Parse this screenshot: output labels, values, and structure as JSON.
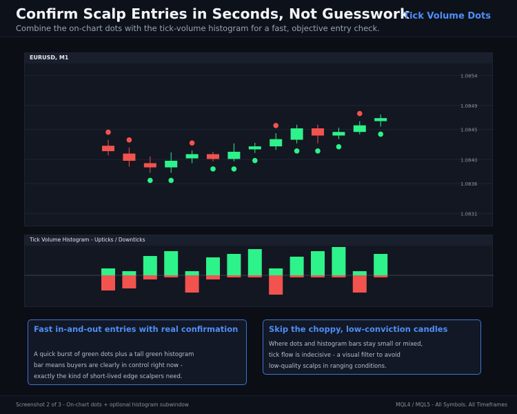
{
  "header": {
    "title": "Confirm Scalp Entries in Seconds, Not Guesswork",
    "subtitle": "Combine the on-chart dots with the tick-volume histogram for a fast, objective entry check.",
    "brand": "Tick Volume Dots"
  },
  "main_panel": {
    "label": "EURUSD, M1"
  },
  "hist_panel": {
    "label": "Tick Volume Histogram - Upticks / Downticks"
  },
  "colors": {
    "bull": "#2ef28a",
    "bear": "#f2534e",
    "accent": "#4f8ef7",
    "panel": "#131722"
  },
  "chart_data": [
    {
      "type": "candlestick",
      "symbol": "EURUSD",
      "timeframe": "M1",
      "ylim": [
        1.0829,
        1.0856
      ],
      "yticks": [
        "1.0854",
        "1.0849",
        "1.0845",
        "1.0840",
        "1.0836",
        "1.0831"
      ],
      "ytick_values": [
        1.0854,
        1.0849,
        1.0845,
        1.084,
        1.0836,
        1.0831
      ],
      "candles": [
        {
          "o": 1.08423,
          "h": 1.08433,
          "l": 1.08407,
          "c": 1.08414,
          "dot": "up"
        },
        {
          "o": 1.0841,
          "h": 1.0842,
          "l": 1.08388,
          "c": 1.08398,
          "dot": "up"
        },
        {
          "o": 1.08394,
          "h": 1.08405,
          "l": 1.08378,
          "c": 1.08387,
          "dot": "down"
        },
        {
          "o": 1.08387,
          "h": 1.08412,
          "l": 1.08378,
          "c": 1.08398,
          "dot": "down"
        },
        {
          "o": 1.08402,
          "h": 1.08415,
          "l": 1.08394,
          "c": 1.08409,
          "dot": "up"
        },
        {
          "o": 1.08409,
          "h": 1.08413,
          "l": 1.08397,
          "c": 1.08401,
          "dot": "down"
        },
        {
          "o": 1.08401,
          "h": 1.08427,
          "l": 1.08397,
          "c": 1.08413,
          "dot": "down"
        },
        {
          "o": 1.08417,
          "h": 1.08428,
          "l": 1.08411,
          "c": 1.08422,
          "dot": "down"
        },
        {
          "o": 1.08422,
          "h": 1.08444,
          "l": 1.08416,
          "c": 1.08434,
          "dot": "up"
        },
        {
          "o": 1.08433,
          "h": 1.08458,
          "l": 1.08427,
          "c": 1.08452,
          "dot": "down"
        },
        {
          "o": 1.08452,
          "h": 1.08458,
          "l": 1.08427,
          "c": 1.0844,
          "dot": "down"
        },
        {
          "o": 1.0844,
          "h": 1.08453,
          "l": 1.08434,
          "c": 1.08446,
          "dot": "down"
        },
        {
          "o": 1.08446,
          "h": 1.08464,
          "l": 1.08442,
          "c": 1.08457,
          "dot": "up"
        },
        {
          "o": 1.08464,
          "h": 1.08475,
          "l": 1.08455,
          "c": 1.08469,
          "dot": "down"
        }
      ]
    },
    {
      "type": "bar",
      "title": "Tick Volume Histogram - Upticks / Downticks",
      "series": [
        {
          "name": "Upticks",
          "values": [
            10,
            6,
            28,
            35,
            6,
            26,
            31,
            38,
            10,
            27,
            35,
            41,
            6,
            31
          ]
        },
        {
          "name": "Downticks",
          "values": [
            22,
            19,
            6,
            3,
            25,
            6,
            3,
            3,
            28,
            3,
            3,
            3,
            25,
            3
          ]
        }
      ]
    }
  ],
  "cards": [
    {
      "title": "Fast in-and-out entries with real confirmation",
      "lines": [
        "A quick burst of green dots plus a tall green histogram",
        "bar means buyers are clearly in control right now -",
        "exactly the kind of short-lived edge scalpers need."
      ]
    },
    {
      "title": "Skip the choppy, low-conviction candles",
      "lines": [
        "Where dots and histogram bars stay small or mixed,",
        "tick flow is indecisive - a visual filter to avoid",
        "low-quality scalps in ranging conditions."
      ]
    }
  ],
  "footer": {
    "left": "Screenshot 2 of 3  -  On-chart dots + optional histogram subwindow",
    "right": "MQL4 / MQL5  -  All Symbols. All Timeframes"
  }
}
